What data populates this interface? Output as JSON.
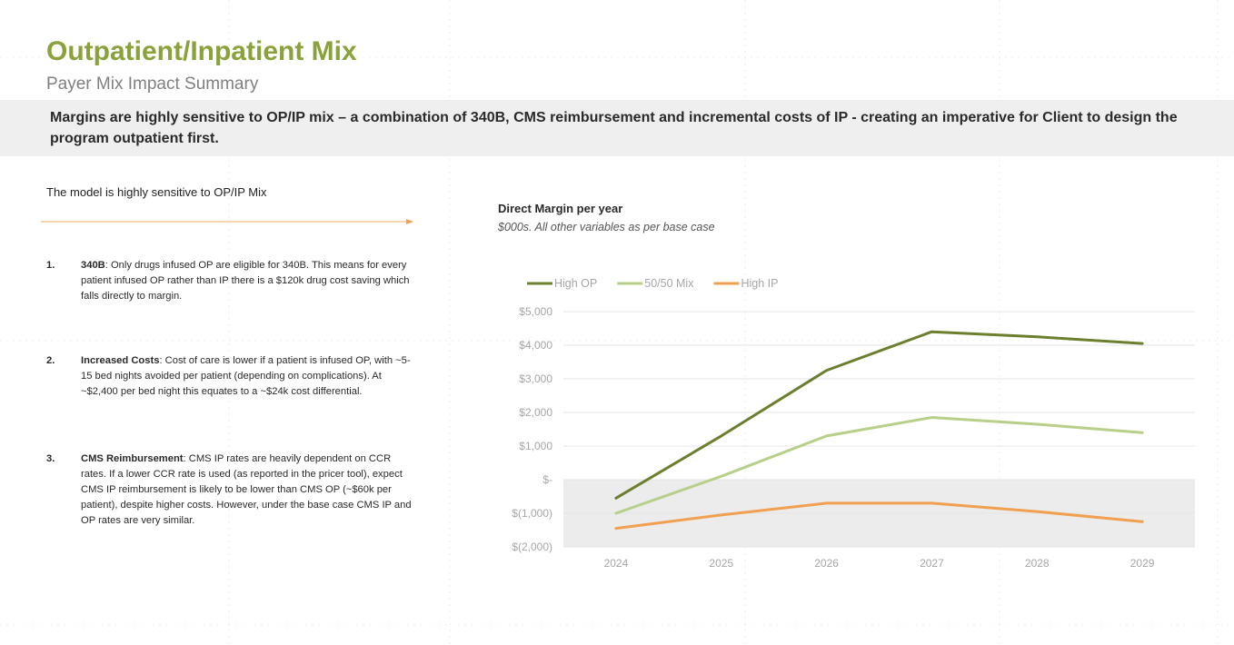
{
  "header": {
    "title": "Outpatient/Inpatient Mix",
    "subtitle": "Payer Mix Impact Summary"
  },
  "banner": {
    "text": "Margins are highly sensitive to OP/IP mix – a combination of 340B, CMS reimbursement and incremental costs of IP - creating an imperative for Client to design the program outpatient first."
  },
  "left_panel": {
    "heading": "The model is highly sensitive to OP/IP Mix",
    "points": [
      {
        "number": "1.",
        "title": "340B",
        "text": ": Only drugs infused OP are eligible for 340B. This means for every patient infused OP rather than IP there is a $120k drug cost saving which falls directly to margin."
      },
      {
        "number": "2.",
        "title": "Increased Costs",
        "text": ": Cost of care is lower if a patient is infused OP, with ~5-15 bed nights avoided per patient (depending on complications). At ~$2,400 per bed night this equates to a ~$24k cost differential."
      },
      {
        "number": "3.",
        "title": "CMS Reimbursement",
        "text": ": CMS IP rates are heavily dependent on CCR rates. If a lower CCR rate is used (as reported in the pricer tool), expect CMS IP reimbursement is likely to be lower than CMS OP (~$60k per patient), despite higher costs. However, under the base case CMS IP and OP rates are very similar."
      }
    ]
  },
  "chart_data": {
    "type": "line",
    "title": "Direct Margin per year",
    "subtitle": "$000s. All other variables as per base case",
    "categories": [
      "2024",
      "2025",
      "2026",
      "2027",
      "2028",
      "2029"
    ],
    "series": [
      {
        "name": "High OP",
        "color": "#6b7f2e",
        "values": [
          -550,
          1300,
          3250,
          4400,
          4250,
          4050
        ]
      },
      {
        "name": "50/50 Mix",
        "color": "#b8cf8a",
        "values": [
          -1000,
          100,
          1300,
          1850,
          1650,
          1400
        ]
      },
      {
        "name": "High IP",
        "color": "#f0a050",
        "values": [
          -1450,
          -1050,
          -700,
          -700,
          -950,
          -1250
        ]
      }
    ],
    "y_ticks": [
      "$5,000",
      "$4,000",
      "$3,000",
      "$2,000",
      "$1,000",
      "$-",
      "$(1,000)",
      "$(2,000)"
    ],
    "ylim": [
      -2000,
      5000
    ],
    "shaded_region": [
      -2000,
      0
    ],
    "legend_position": "top-left",
    "xlabel": "",
    "ylabel": ""
  }
}
